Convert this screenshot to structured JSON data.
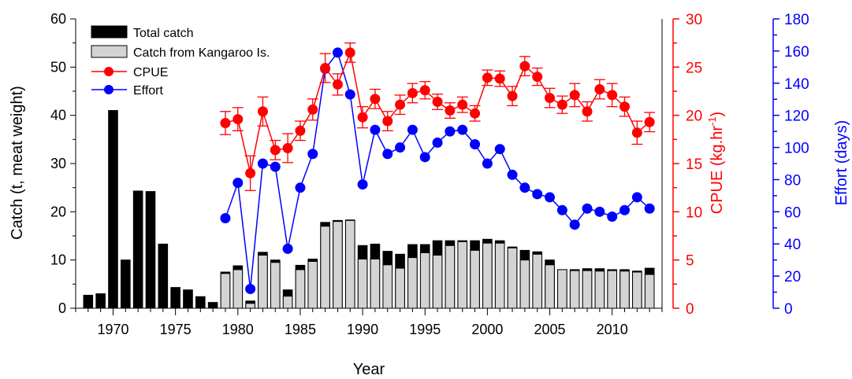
{
  "chart_data": {
    "type": "bar+line",
    "xlabel": "Year",
    "y1label": "Catch (t, meat weight)",
    "y2label": "CPUE (kg.hr",
    "y2label_sup": "-1",
    "y2label_end": ")",
    "y3label": "Effort (days)",
    "x_ticks": [
      "1970",
      "1975",
      "1980",
      "1985",
      "1990",
      "1995",
      "2000",
      "2005",
      "2010"
    ],
    "y1_ticks": [
      "0",
      "10",
      "20",
      "30",
      "40",
      "50",
      "60"
    ],
    "y2_ticks": [
      "0",
      "5",
      "10",
      "15",
      "20",
      "25",
      "30"
    ],
    "y3_ticks": [
      "0",
      "20",
      "40",
      "60",
      "80",
      "100",
      "120",
      "140",
      "160",
      "180"
    ],
    "xlim": [
      1967,
      2014
    ],
    "y1lim": [
      0,
      60
    ],
    "y2lim": [
      0,
      30
    ],
    "y3lim": [
      0,
      180
    ],
    "colors": {
      "total": "#000000",
      "ki": "#d3d3d3",
      "cpue": "#ff0000",
      "effort": "#0000ff"
    },
    "legend": {
      "position": "top-left",
      "items": [
        {
          "label": "Total catch",
          "kind": "bar-black"
        },
        {
          "label": "Catch from Kangaroo Is.",
          "kind": "bar-grey"
        },
        {
          "label": "CPUE",
          "kind": "line-red"
        },
        {
          "label": "Effort",
          "kind": "line-blue"
        }
      ]
    },
    "years": [
      1968,
      1969,
      1970,
      1971,
      1972,
      1973,
      1974,
      1975,
      1976,
      1977,
      1978,
      1979,
      1980,
      1981,
      1982,
      1983,
      1984,
      1985,
      1986,
      1987,
      1988,
      1989,
      1990,
      1991,
      1992,
      1993,
      1994,
      1995,
      1996,
      1997,
      1998,
      1999,
      2000,
      2001,
      2002,
      2003,
      2004,
      2005,
      2006,
      2007,
      2008,
      2009,
      2010,
      2011,
      2012,
      2013
    ],
    "total_catch": [
      2.7,
      3.0,
      41.0,
      10.0,
      24.3,
      24.2,
      13.3,
      4.3,
      3.8,
      2.4,
      1.2,
      7.5,
      8.8,
      1.5,
      11.6,
      10.0,
      3.8,
      8.9,
      10.2,
      17.8,
      18.2,
      18.3,
      13.0,
      13.3,
      11.8,
      11.2,
      13.2,
      13.2,
      14.0,
      14.0,
      14.0,
      14.0,
      14.3,
      14.0,
      12.7,
      12.0,
      11.7,
      10.0,
      8.0,
      8.0,
      8.2,
      8.2,
      8.0,
      8.0,
      7.7,
      8.3
    ],
    "ki_catch": [
      0,
      0,
      0,
      0,
      0,
      0,
      0,
      0,
      0,
      0,
      0,
      7.2,
      8.0,
      1.0,
      11.0,
      9.5,
      2.5,
      8.0,
      9.7,
      17.0,
      18.0,
      18.2,
      10.2,
      10.2,
      9.0,
      8.3,
      10.5,
      11.5,
      11.0,
      13.0,
      13.8,
      12.0,
      13.5,
      13.5,
      12.5,
      10.0,
      11.2,
      9.0,
      8.0,
      7.8,
      7.8,
      7.7,
      7.8,
      7.7,
      7.5,
      7.0
    ],
    "cpue_years": [
      1979,
      1980,
      1981,
      1982,
      1983,
      1984,
      1985,
      1986,
      1987,
      1988,
      1989,
      1990,
      1991,
      1992,
      1993,
      1994,
      1995,
      1996,
      1997,
      1998,
      1999,
      2000,
      2001,
      2002,
      2003,
      2004,
      2005,
      2006,
      2007,
      2008,
      2009,
      2010,
      2011,
      2012,
      2013
    ],
    "cpue": [
      19.2,
      19.6,
      14.0,
      20.4,
      16.4,
      16.6,
      18.4,
      20.6,
      24.9,
      23.2,
      26.5,
      19.8,
      21.7,
      19.4,
      21.1,
      22.3,
      22.6,
      21.4,
      20.5,
      21.1,
      20.2,
      23.9,
      23.8,
      22.0,
      25.1,
      24.0,
      21.8,
      21.1,
      22.1,
      20.4,
      22.7,
      22.1,
      20.9,
      18.2,
      19.3
    ],
    "cpue_err": [
      1.2,
      1.2,
      1.8,
      1.5,
      1.0,
      1.5,
      1.0,
      1.1,
      1.5,
      1.1,
      1.0,
      1.1,
      1.0,
      1.0,
      1.0,
      1.0,
      0.9,
      0.8,
      0.8,
      0.8,
      0.8,
      0.8,
      0.8,
      1.0,
      1.0,
      0.9,
      1.0,
      0.9,
      1.2,
      1.0,
      1.0,
      1.2,
      1.0,
      1.2,
      1.0
    ],
    "effort": [
      56,
      78,
      12,
      90,
      88,
      37,
      75,
      96,
      149,
      159,
      133,
      77,
      111,
      96,
      100,
      111,
      94,
      103,
      110,
      111,
      102,
      90,
      99,
      83,
      75,
      71,
      69,
      61,
      52,
      62,
      60,
      57,
      61,
      69,
      62
    ]
  }
}
